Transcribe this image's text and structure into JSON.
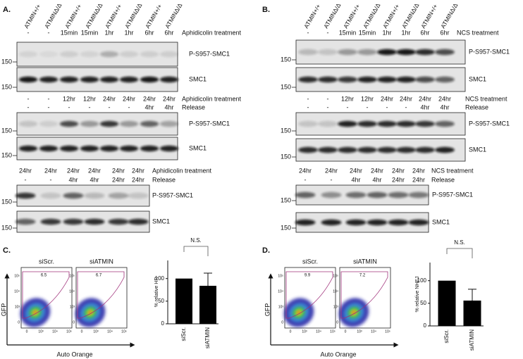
{
  "panel_A": {
    "label": "A.",
    "lanes": [
      "ATMIN+/+",
      "ATMINΔ/Δ",
      "ATMIN+/+",
      "ATMINΔ/Δ",
      "ATMIN+/+",
      "ATMINΔ/Δ",
      "ATMIN+/+",
      "ATMINΔ/Δ"
    ],
    "groups": [
      {
        "rows": [
          {
            "values": [
              "-",
              "-",
              "15min",
              "15min",
              "1hr",
              "1hr",
              "6hr",
              "6hr"
            ],
            "label": "Aphidicolin treatment"
          }
        ],
        "blots": [
          {
            "label": "P-S957-SMC1",
            "marker": "150"
          },
          {
            "label": "SMC1",
            "marker": "150"
          }
        ]
      },
      {
        "rows": [
          {
            "values": [
              "-",
              "-",
              "12hr",
              "12hr",
              "24hr",
              "24hr",
              "24hr",
              "24hr"
            ],
            "label": "Aphidicolin treatment"
          },
          {
            "values": [
              "-",
              "-",
              "-",
              "-",
              "-",
              "-",
              "4hr",
              "4hr"
            ],
            "label": "Release"
          }
        ],
        "blots": [
          {
            "label": "P-S957-SMC1",
            "marker": "150"
          },
          {
            "label": "SMC1",
            "marker": "150"
          }
        ]
      },
      {
        "rows": [
          {
            "values": [
              "24hr",
              "24hr",
              "24hr",
              "24hr",
              "24hr",
              "24hr"
            ],
            "label": "Aphidicolin treatment"
          },
          {
            "values": [
              "-",
              "-",
              "4hr",
              "4hr",
              "24hr",
              "24hr"
            ],
            "label": "Release"
          }
        ],
        "blots": [
          {
            "label": "P-S957-SMC1",
            "marker": "150"
          },
          {
            "label": "SMC1",
            "marker": "150"
          }
        ]
      }
    ]
  },
  "panel_B": {
    "label": "B.",
    "lanes": [
      "ATMIN+/+",
      "ATMINΔ/Δ",
      "ATMIN+/+",
      "ATMINΔ/Δ",
      "ATMIN+/+",
      "ATMINΔ/Δ",
      "ATMIN+/+",
      "ATMINΔ/Δ"
    ],
    "groups": [
      {
        "rows": [
          {
            "values": [
              "-",
              "-",
              "15min",
              "15min",
              "1hr",
              "1hr",
              "6hr",
              "6hr"
            ],
            "label": "NCS treatment"
          }
        ],
        "blots": [
          {
            "label": "P-S957-SMC1",
            "marker": "150"
          },
          {
            "label": "SMC1",
            "marker": "150"
          }
        ]
      },
      {
        "rows": [
          {
            "values": [
              "-",
              "-",
              "12hr",
              "12hr",
              "24hr",
              "24hr",
              "24hr",
              "24hr"
            ],
            "label": "NCS treatment"
          },
          {
            "values": [
              "-",
              "-",
              "-",
              "-",
              "-",
              "-",
              "4hr",
              "4hr"
            ],
            "label": "Release"
          }
        ],
        "blots": [
          {
            "label": "P-S957-SMC1",
            "marker": "150"
          },
          {
            "label": "SMC1",
            "marker": "150"
          }
        ]
      },
      {
        "rows": [
          {
            "values": [
              "24hr",
              "24hr",
              "24hr",
              "24hr",
              "24hr",
              "24hr"
            ],
            "label": "NCS treatment"
          },
          {
            "values": [
              "-",
              "-",
              "4hr",
              "4hr",
              "24hr",
              "24hr"
            ],
            "label": "Release"
          }
        ],
        "blots": [
          {
            "label": "P-S957-SMC1",
            "marker": "150"
          },
          {
            "label": "SMC1",
            "marker": "150"
          }
        ]
      }
    ]
  },
  "panel_C": {
    "label": "C.",
    "y_axis": "GFP",
    "x_axis": "Auto Orange",
    "samples": [
      {
        "name": "siScr.",
        "gate": "6.5"
      },
      {
        "name": "siATMIN",
        "gate": "6.7"
      }
    ],
    "ticks": [
      "0",
      "10³",
      "10⁴",
      "10⁵"
    ]
  },
  "panel_D": {
    "label": "D.",
    "y_axis": "GFP",
    "x_axis": "Auto Orange",
    "samples": [
      {
        "name": "siScr.",
        "gate": "9.9"
      },
      {
        "name": "siATMIN",
        "gate": "7.2"
      }
    ],
    "ticks": [
      "0",
      "10³",
      "10⁴",
      "10⁵"
    ]
  },
  "chart_data": [
    {
      "type": "bar",
      "ylabel": "% relative HR",
      "categories": [
        "siScr.",
        "siATMIN"
      ],
      "values": [
        100,
        84
      ],
      "errors": [
        null,
        28
      ],
      "annotation": "N.S.",
      "color": "#000000",
      "ylim": [
        0,
        140
      ],
      "yticks": [
        0,
        50,
        100
      ]
    },
    {
      "type": "bar",
      "ylabel": "% relative NHEJ",
      "categories": [
        "siScr.",
        "siATMIN"
      ],
      "values": [
        100,
        56
      ],
      "errors": [
        null,
        25
      ],
      "annotation": "N.S.",
      "color": "#000000",
      "ylim": [
        0,
        140
      ],
      "yticks": [
        0,
        50,
        100
      ]
    }
  ]
}
